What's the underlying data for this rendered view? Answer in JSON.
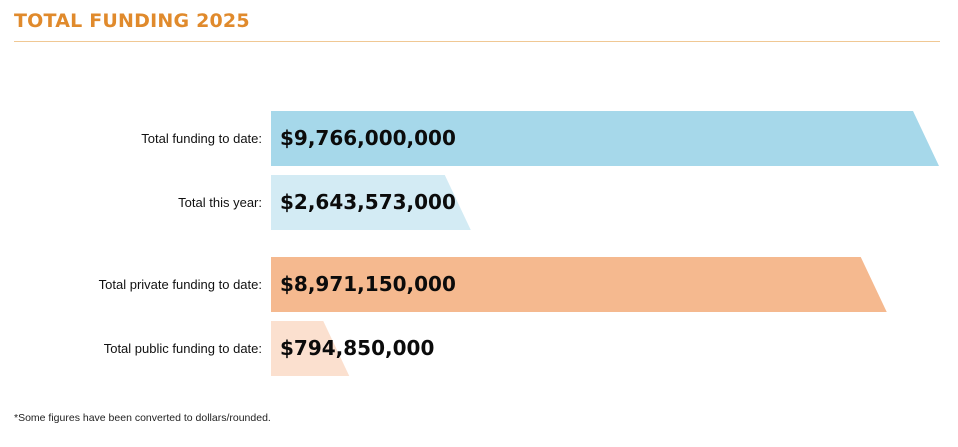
{
  "header": {
    "title": "TOTAL FUNDING 2025"
  },
  "footnote": "*Some figures have been converted to dollars/rounded.",
  "chart_data": {
    "type": "bar",
    "orientation": "horizontal",
    "title": "TOTAL FUNDING 2025",
    "categories": [
      "Total funding to date:",
      "Total this year:",
      "Total private funding to date:",
      "Total public funding to date:"
    ],
    "values": [
      9766000000,
      2643573000,
      8971150000,
      794850000
    ],
    "value_labels": [
      "$9,766,000,000",
      "$2,643,573,000",
      "$8,971,150,000",
      "$794,850,000"
    ],
    "colors": [
      "#a6d8ea",
      "#d3ebf4",
      "#f5b98f",
      "#fbe0cf"
    ],
    "accent": "#e08a2c",
    "grid": false,
    "legend": "none"
  }
}
